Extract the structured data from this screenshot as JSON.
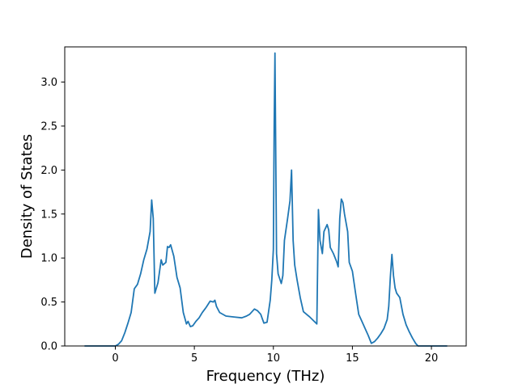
{
  "chart_data": {
    "type": "line",
    "xlabel": "Frequency (THz)",
    "ylabel": "Density of States",
    "xlim": [
      -3.2,
      22.2
    ],
    "ylim": [
      0,
      3.4
    ],
    "xticks": [
      0,
      5,
      10,
      15,
      20
    ],
    "xtick_labels": [
      "0",
      "5",
      "10",
      "15",
      "20"
    ],
    "yticks": [
      0.0,
      0.5,
      1.0,
      1.5,
      2.0,
      2.5,
      3.0
    ],
    "ytick_labels": [
      "0.0",
      "0.5",
      "1.0",
      "1.5",
      "2.0",
      "2.5",
      "3.0"
    ],
    "grid": false,
    "line_color": "#1f77b4",
    "series": [
      {
        "x": [
          -1.95,
          -0.5,
          0.0,
          0.2,
          0.4,
          0.6,
          0.8,
          1.0,
          1.2,
          1.4,
          1.6,
          1.8,
          2.0,
          2.2,
          2.3,
          2.4,
          2.5,
          2.7,
          2.8,
          2.9,
          3.0,
          3.2,
          3.3,
          3.4,
          3.5,
          3.7,
          3.9,
          4.1,
          4.3,
          4.5,
          4.6,
          4.75,
          4.9,
          5.1,
          5.3,
          5.5,
          5.75,
          6.0,
          6.2,
          6.3,
          6.4,
          6.6,
          7.0,
          7.5,
          8.0,
          8.3,
          8.5,
          8.8,
          9.0,
          9.2,
          9.3,
          9.4,
          9.6,
          9.8,
          9.9,
          10.0,
          10.05,
          10.1,
          10.2,
          10.3,
          10.5,
          10.6,
          10.7,
          10.9,
          11.05,
          11.15,
          11.25,
          11.35,
          11.5,
          11.7,
          11.9,
          12.3,
          12.75,
          12.85,
          12.95,
          13.1,
          13.2,
          13.4,
          13.5,
          13.6,
          13.8,
          14.0,
          14.1,
          14.2,
          14.3,
          14.4,
          14.5,
          14.7,
          14.8,
          14.9,
          15.0,
          15.2,
          15.4,
          15.6,
          15.8,
          16.0,
          16.2,
          16.4,
          16.6,
          16.8,
          17.0,
          17.2,
          17.3,
          17.4,
          17.5,
          17.6,
          17.7,
          17.8,
          18.0,
          18.2,
          18.4,
          18.6,
          18.8,
          19.0,
          19.15,
          19.3,
          20.3,
          21.0
        ],
        "y": [
          0.0,
          0.0,
          0.0,
          0.02,
          0.06,
          0.15,
          0.26,
          0.38,
          0.65,
          0.7,
          0.82,
          0.98,
          1.1,
          1.3,
          1.66,
          1.45,
          0.6,
          0.72,
          0.85,
          0.98,
          0.92,
          0.95,
          1.13,
          1.12,
          1.15,
          1.02,
          0.78,
          0.66,
          0.38,
          0.25,
          0.28,
          0.22,
          0.23,
          0.28,
          0.32,
          0.38,
          0.44,
          0.51,
          0.5,
          0.52,
          0.45,
          0.38,
          0.34,
          0.33,
          0.32,
          0.34,
          0.36,
          0.42,
          0.4,
          0.36,
          0.31,
          0.26,
          0.27,
          0.52,
          0.75,
          1.1,
          2.5,
          3.33,
          1.05,
          0.82,
          0.71,
          0.8,
          1.2,
          1.45,
          1.65,
          2.0,
          1.2,
          0.92,
          0.75,
          0.55,
          0.39,
          0.33,
          0.25,
          1.55,
          1.2,
          1.05,
          1.3,
          1.38,
          1.32,
          1.12,
          1.05,
          0.96,
          0.9,
          1.45,
          1.67,
          1.63,
          1.5,
          1.3,
          0.95,
          0.9,
          0.85,
          0.6,
          0.36,
          0.28,
          0.2,
          0.12,
          0.03,
          0.05,
          0.09,
          0.14,
          0.2,
          0.3,
          0.45,
          0.78,
          1.04,
          0.8,
          0.66,
          0.6,
          0.55,
          0.36,
          0.24,
          0.16,
          0.09,
          0.03,
          0.0,
          0.0,
          0.0,
          0.0
        ]
      }
    ]
  }
}
